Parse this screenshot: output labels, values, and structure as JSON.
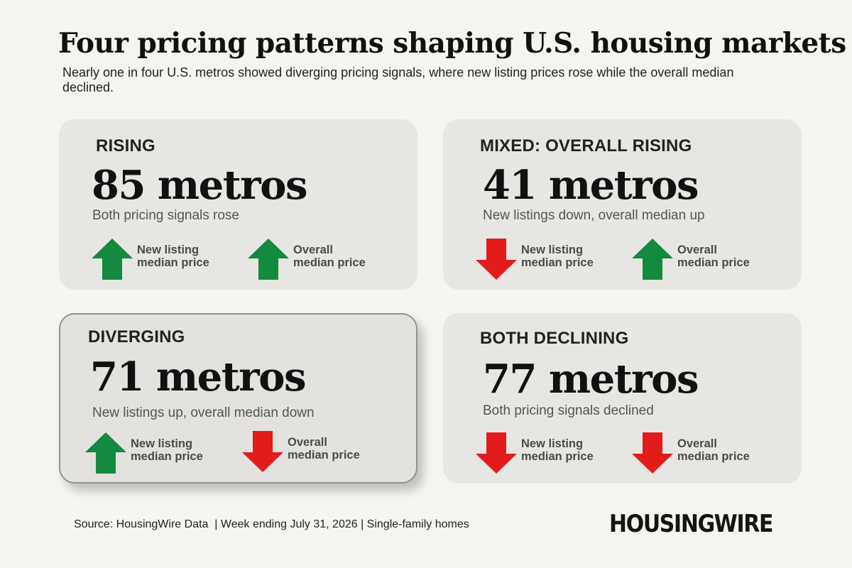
{
  "title": "Four pricing patterns shaping U.S. housing markets",
  "subtitle": "Nearly one in four U.S. metros showed diverging pricing signals, where new listing prices rose while the overall median declined.",
  "colors": {
    "up": "#138a3e",
    "down": "#e31b1b",
    "card": "#e7e6e2",
    "background": "#f6f4ef"
  },
  "cards": [
    {
      "label": "RISING",
      "count": "85 metros",
      "description": "Both pricing signals rose",
      "signals": [
        {
          "label": "New listing\nmedian price",
          "direction": "up",
          "icon": "up-arrow-icon"
        },
        {
          "label": "Overall\nmedian price",
          "direction": "up",
          "icon": "up-arrow-icon"
        }
      ]
    },
    {
      "label": "MIXED: OVERALL RISING",
      "count": "41 metros",
      "description": "New listings down, overall median up",
      "signals": [
        {
          "label": "New listing\nmedian price",
          "direction": "down",
          "icon": "down-arrow-icon"
        },
        {
          "label": "Overall\nmedian price",
          "direction": "up",
          "icon": "up-arrow-icon"
        }
      ]
    },
    {
      "label": "DIVERGING",
      "count": "71 metros",
      "description": "New listings up, overall median down",
      "highlighted": true,
      "signals": [
        {
          "label": "New listing\nmedian price",
          "direction": "up",
          "icon": "up-arrow-icon"
        },
        {
          "label": "Overall\nmedian price",
          "direction": "down",
          "icon": "down-arrow-icon"
        }
      ]
    },
    {
      "label": "BOTH DECLINING",
      "count": "77 metros",
      "description": "Both pricing signals declined",
      "signals": [
        {
          "label": "New listing\nmedian price",
          "direction": "down",
          "icon": "down-arrow-icon"
        },
        {
          "label": "Overall\nmedian price",
          "direction": "down",
          "icon": "down-arrow-icon"
        }
      ]
    }
  ],
  "footer": {
    "source": "Source: HousingWire Data  | Week ending July 31, 2026 | Single-family homes",
    "logo": "HOUSINGWIRE"
  }
}
